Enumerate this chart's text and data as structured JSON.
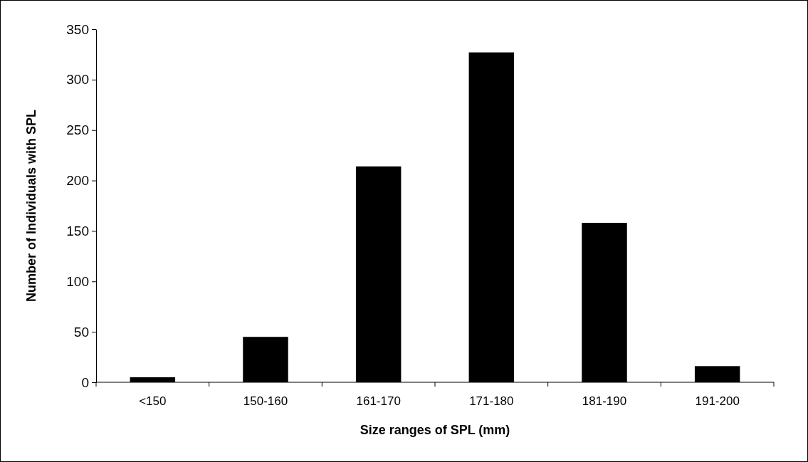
{
  "chart_data": {
    "type": "bar",
    "xlabel": "Size ranges of SPL (mm)",
    "ylabel": "Number of Individuals with SPL",
    "categories": [
      "<150",
      "150-160",
      "161-170",
      "171-180",
      "181-190",
      "191-200"
    ],
    "values": [
      5,
      45,
      214,
      327,
      158,
      16
    ],
    "color": "#000000",
    "ylim": [
      0,
      350
    ],
    "yticks": [
      0,
      50,
      100,
      150,
      200,
      250,
      300,
      350
    ],
    "grid": false
  }
}
